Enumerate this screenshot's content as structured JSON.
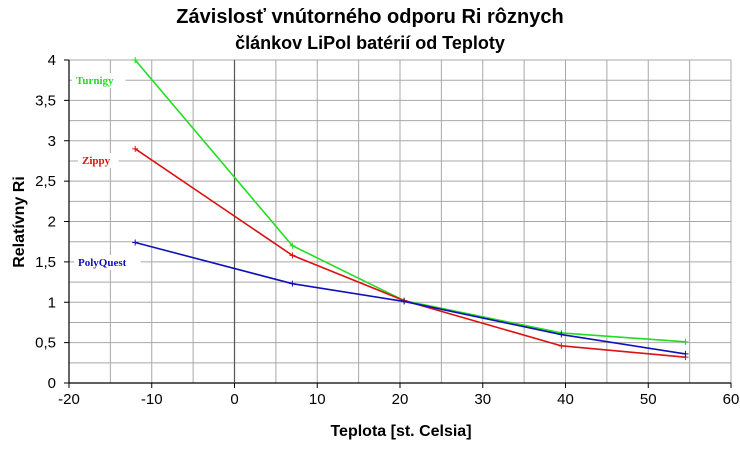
{
  "chart_data": {
    "type": "line",
    "title": "Závislosť vnútorného odporu Ri rôznych",
    "subtitle": "článkov LiPol batérií od Teploty",
    "xlabel": "Teplota [st. Celsia]",
    "ylabel": "Relatívny Ri",
    "xlim": [
      -20,
      60
    ],
    "ylim": [
      0,
      4
    ],
    "x_ticks": [
      -20,
      -10,
      0,
      10,
      20,
      30,
      40,
      50,
      60
    ],
    "x_tick_labels": [
      "-20",
      "-10",
      "0",
      "10",
      "20",
      "30",
      "40",
      "50",
      "60"
    ],
    "y_ticks": [
      0,
      0.5,
      1,
      1.5,
      2,
      2.5,
      3,
      3.5,
      4
    ],
    "y_tick_labels": [
      "0",
      "0,5",
      "1",
      "1,5",
      "2",
      "2,5",
      "3",
      "3,5",
      "4"
    ],
    "grid": true,
    "legend": "inline labels at left",
    "series": [
      {
        "name": "Turnigy",
        "color": "#22dd22",
        "x": [
          -12,
          7,
          20.5,
          39.5,
          54.5
        ],
        "y": [
          4.0,
          1.7,
          1.02,
          0.62,
          0.51
        ]
      },
      {
        "name": "Zippy",
        "color": "#dd1111",
        "x": [
          -12,
          7,
          20.5,
          39.5,
          54.5
        ],
        "y": [
          2.9,
          1.58,
          1.02,
          0.46,
          0.32
        ]
      },
      {
        "name": "PolyQuest",
        "color": "#1111bb",
        "x": [
          -12,
          7,
          20.5,
          39.5,
          54.5
        ],
        "y": [
          1.74,
          1.23,
          1.01,
          0.6,
          0.36
        ]
      }
    ]
  }
}
